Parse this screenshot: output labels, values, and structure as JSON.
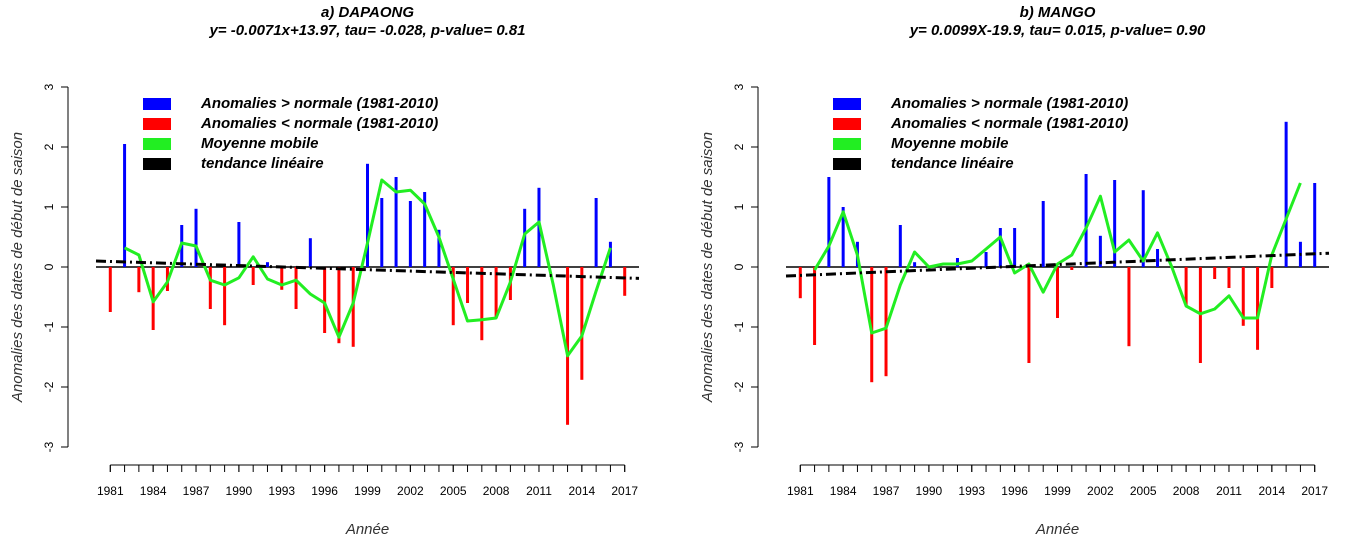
{
  "chart_data": [
    {
      "type": "bar",
      "title": "a) DAPAONG",
      "subtitle": "y= -0.0071x+13.97, tau= -0.028, p-value= 0.81",
      "x_label": "Année",
      "y_label": "Anomalies des dates de début de saison",
      "x": [
        1981,
        1982,
        1983,
        1984,
        1985,
        1986,
        1987,
        1988,
        1989,
        1990,
        1991,
        1992,
        1993,
        1994,
        1995,
        1996,
        1997,
        1998,
        1999,
        2000,
        2001,
        2002,
        2003,
        2004,
        2005,
        2006,
        2007,
        2008,
        2009,
        2010,
        2011,
        2012,
        2013,
        2014,
        2015,
        2016,
        2017
      ],
      "xlim": [
        1980,
        2018
      ],
      "xticks": [
        1981,
        1984,
        1987,
        1990,
        1993,
        1996,
        1999,
        2002,
        2005,
        2008,
        2011,
        2014,
        2017
      ],
      "ylim": [
        -3,
        3
      ],
      "yticks": [
        -3,
        -2,
        -1,
        0,
        1,
        2,
        3
      ],
      "series": [
        {
          "name": "Anomalies > normale (1981-2010)",
          "color": "#0000ff",
          "kind": "bar",
          "values": [
            null,
            2.05,
            null,
            null,
            null,
            0.7,
            0.97,
            null,
            null,
            0.75,
            null,
            0.08,
            null,
            null,
            0.48,
            null,
            null,
            null,
            1.72,
            1.15,
            1.5,
            1.1,
            1.25,
            0.62,
            null,
            null,
            null,
            null,
            null,
            0.97,
            1.32,
            null,
            null,
            null,
            1.15,
            0.42,
            null
          ]
        },
        {
          "name": "Anomalies < normale (1981-2010)",
          "color": "#ff0000",
          "kind": "bar",
          "values": [
            -0.75,
            null,
            -0.42,
            -1.05,
            -0.4,
            null,
            null,
            -0.7,
            -0.97,
            null,
            -0.3,
            null,
            -0.38,
            -0.7,
            null,
            -1.1,
            -1.27,
            -1.33,
            null,
            null,
            null,
            null,
            null,
            null,
            -0.97,
            -0.6,
            -1.22,
            -0.85,
            -0.55,
            null,
            null,
            null,
            -2.63,
            -1.88,
            null,
            null,
            -0.48
          ]
        },
        {
          "name": "Moyenne mobile",
          "color": "#22ee22",
          "kind": "line",
          "values": [
            null,
            0.32,
            0.2,
            -0.58,
            -0.25,
            0.4,
            0.35,
            -0.22,
            -0.3,
            -0.18,
            0.17,
            -0.2,
            -0.3,
            -0.22,
            -0.45,
            -0.6,
            -1.17,
            -0.6,
            0.4,
            1.45,
            1.25,
            1.28,
            1.05,
            0.5,
            -0.2,
            -0.9,
            -0.88,
            -0.85,
            -0.25,
            0.55,
            0.75,
            -0.3,
            -1.48,
            -1.15,
            -0.4,
            0.32,
            null
          ]
        },
        {
          "name": "tendance linéaire",
          "color": "#000000",
          "kind": "trend",
          "x": [
            1980,
            2018
          ],
          "values": [
            0.1,
            -0.19
          ]
        }
      ]
    },
    {
      "type": "bar",
      "title": "b) MANGO",
      "subtitle": "y= 0.0099X-19.9, tau= 0.015, p-value= 0.90",
      "x_label": "Année",
      "y_label": "Anomalies des dates de début de saison",
      "x": [
        1981,
        1982,
        1983,
        1984,
        1985,
        1986,
        1987,
        1988,
        1989,
        1990,
        1991,
        1992,
        1993,
        1994,
        1995,
        1996,
        1997,
        1998,
        1999,
        2000,
        2001,
        2002,
        2003,
        2004,
        2005,
        2006,
        2007,
        2008,
        2009,
        2010,
        2011,
        2012,
        2013,
        2014,
        2015,
        2016,
        2017
      ],
      "xlim": [
        1980,
        2018
      ],
      "xticks": [
        1981,
        1984,
        1987,
        1990,
        1993,
        1996,
        1999,
        2002,
        2005,
        2008,
        2011,
        2014,
        2017
      ],
      "ylim": [
        -3,
        3
      ],
      "yticks": [
        -3,
        -2,
        -1,
        0,
        1,
        2,
        3
      ],
      "series": [
        {
          "name": "Anomalies > normale (1981-2010)",
          "color": "#0000ff",
          "kind": "bar",
          "values": [
            null,
            null,
            1.5,
            1.0,
            0.42,
            null,
            null,
            0.7,
            0.08,
            null,
            null,
            0.15,
            null,
            0.25,
            0.65,
            0.65,
            null,
            1.1,
            null,
            null,
            1.55,
            0.52,
            1.45,
            null,
            1.28,
            0.3,
            null,
            null,
            null,
            null,
            null,
            null,
            null,
            null,
            2.42,
            0.42,
            1.4
          ]
        },
        {
          "name": "Anomalies < normale (1981-2010)",
          "color": "#ff0000",
          "kind": "bar",
          "values": [
            -0.52,
            -1.3,
            null,
            null,
            null,
            -1.92,
            -1.82,
            null,
            null,
            null,
            null,
            null,
            null,
            null,
            null,
            null,
            -1.6,
            null,
            -0.85,
            -0.05,
            null,
            null,
            null,
            -1.32,
            null,
            null,
            null,
            -0.65,
            -1.6,
            -0.2,
            -0.35,
            -0.98,
            -1.38,
            -0.35,
            null,
            null,
            null
          ]
        },
        {
          "name": "Moyenne mobile",
          "color": "#22ee22",
          "kind": "line",
          "values": [
            null,
            -0.05,
            0.35,
            0.92,
            0.2,
            -1.1,
            -1.02,
            -0.3,
            0.25,
            0.0,
            0.05,
            0.05,
            0.1,
            0.3,
            0.5,
            -0.1,
            0.05,
            -0.42,
            0.05,
            0.2,
            0.65,
            1.18,
            0.25,
            0.45,
            0.1,
            0.57,
            0.0,
            -0.65,
            -0.78,
            -0.7,
            -0.48,
            -0.85,
            -0.85,
            0.2,
            0.8,
            1.4,
            null
          ]
        },
        {
          "name": "tendance linéaire",
          "color": "#000000",
          "kind": "trend",
          "x": [
            1980,
            2018
          ],
          "values": [
            -0.15,
            0.23
          ]
        }
      ]
    }
  ]
}
